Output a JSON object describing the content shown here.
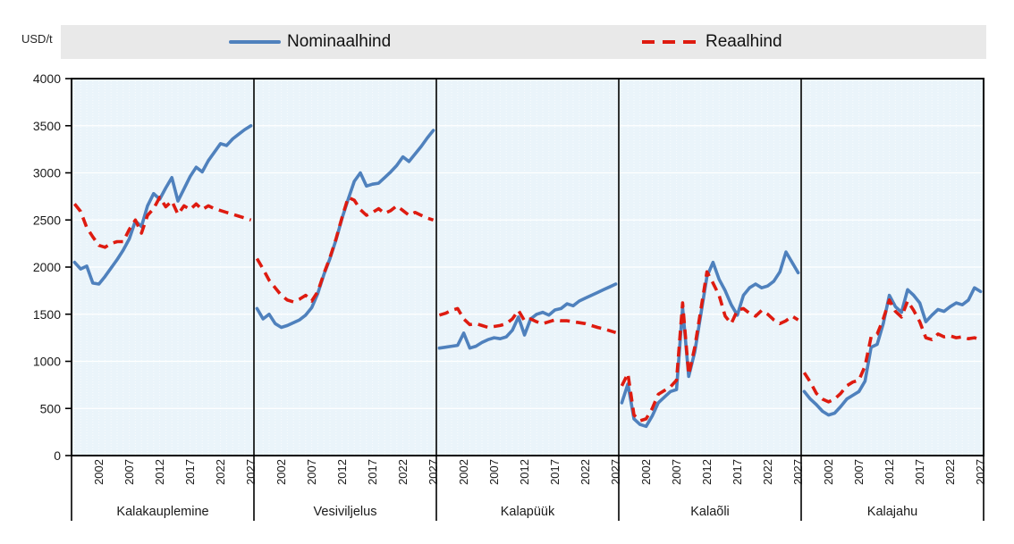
{
  "unit_label": "USD/t",
  "legend": {
    "items": [
      {
        "label": "Nominaalhind",
        "style": "solid",
        "color": "#4F81BD"
      },
      {
        "label": "Reaalhind",
        "style": "dashed",
        "color": "#DE1B10"
      }
    ]
  },
  "colors": {
    "nominal": "#4F81BD",
    "real": "#DE1B10",
    "plot_bg": "#EAF4FA",
    "legend_bg": "#E9E9E9",
    "axis": "#000000",
    "grid": "#FFFFFF",
    "text": "#1A1A1A"
  },
  "chart_data": {
    "type": "line",
    "title": "",
    "ylabel": "USD/t",
    "ylim": [
      0,
      4000
    ],
    "ytick_interval": 500,
    "grid": true,
    "legend_position": "top",
    "years": [
      1998,
      1999,
      2000,
      2001,
      2002,
      2003,
      2004,
      2005,
      2006,
      2007,
      2008,
      2009,
      2010,
      2011,
      2012,
      2013,
      2014,
      2015,
      2016,
      2017,
      2018,
      2019,
      2020,
      2021,
      2022,
      2023,
      2024,
      2025,
      2026,
      2027
    ],
    "year_tick_labels": [
      2002,
      2007,
      2012,
      2017,
      2022,
      2027
    ],
    "panels": [
      {
        "label": "Kalakauplemine",
        "slug": "kalakauplemine",
        "series": [
          {
            "name": "Nominaalhind",
            "values": [
              2050,
              1980,
              2010,
              1830,
              1820,
              1900,
              1990,
              2080,
              2180,
              2300,
              2490,
              2430,
              2650,
              2780,
              2720,
              2840,
              2950,
              2700,
              2830,
              2960,
              3060,
              3010,
              3130,
              3220,
              3310,
              3290,
              3360,
              3410,
              3460,
              3500
            ]
          },
          {
            "name": "Reaalhind",
            "values": [
              2670,
              2590,
              2420,
              2320,
              2230,
              2210,
              2250,
              2270,
              2270,
              2400,
              2500,
              2360,
              2550,
              2620,
              2740,
              2640,
              2700,
              2560,
              2650,
              2610,
              2670,
              2610,
              2650,
              2620,
              2600,
              2580,
              2560,
              2540,
              2520,
              2500
            ]
          }
        ]
      },
      {
        "label": "Vesiviljelus",
        "slug": "vesiviljelus",
        "series": [
          {
            "name": "Nominaalhind",
            "values": [
              1560,
              1450,
              1500,
              1400,
              1360,
              1380,
              1410,
              1440,
              1490,
              1570,
              1720,
              1920,
              2090,
              2290,
              2520,
              2720,
              2910,
              3000,
              2860,
              2880,
              2890,
              2950,
              3010,
              3080,
              3170,
              3120,
              3200,
              3280,
              3370,
              3450
            ]
          },
          {
            "name": "Reaalhind",
            "values": [
              2090,
              1980,
              1860,
              1780,
              1700,
              1650,
              1630,
              1660,
              1700,
              1640,
              1740,
              1930,
              2100,
              2300,
              2530,
              2740,
              2710,
              2610,
              2550,
              2580,
              2620,
              2570,
              2600,
              2650,
              2600,
              2550,
              2580,
              2550,
              2520,
              2500
            ]
          }
        ]
      },
      {
        "label": "Kalapüük",
        "slug": "kalapuuk",
        "series": [
          {
            "name": "Nominaalhind",
            "values": [
              1140,
              1150,
              1160,
              1170,
              1300,
              1140,
              1160,
              1200,
              1230,
              1250,
              1240,
              1260,
              1330,
              1470,
              1280,
              1450,
              1500,
              1520,
              1490,
              1545,
              1560,
              1610,
              1590,
              1640,
              1670,
              1700,
              1730,
              1760,
              1790,
              1820
            ]
          },
          {
            "name": "Reaalhind",
            "values": [
              1490,
              1510,
              1540,
              1560,
              1450,
              1390,
              1400,
              1380,
              1360,
              1370,
              1380,
              1400,
              1450,
              1540,
              1430,
              1450,
              1420,
              1400,
              1420,
              1440,
              1430,
              1430,
              1420,
              1410,
              1400,
              1380,
              1360,
              1345,
              1325,
              1305
            ]
          }
        ]
      },
      {
        "label": "Kalaõli",
        "slug": "kalaoli",
        "series": [
          {
            "name": "Nominaalhind",
            "values": [
              560,
              760,
              390,
              330,
              310,
              420,
              560,
              620,
              680,
              700,
              1570,
              840,
              1100,
              1500,
              1900,
              2050,
              1870,
              1750,
              1600,
              1490,
              1700,
              1780,
              1820,
              1780,
              1800,
              1850,
              1950,
              2160,
              2050,
              1940
            ]
          },
          {
            "name": "Reaalhind",
            "values": [
              740,
              870,
              430,
              370,
              390,
              500,
              650,
              690,
              730,
              800,
              1620,
              860,
              1150,
              1550,
              1950,
              1830,
              1700,
              1480,
              1400,
              1540,
              1560,
              1510,
              1480,
              1540,
              1500,
              1440,
              1400,
              1430,
              1480,
              1440
            ]
          }
        ]
      },
      {
        "label": "Kalajahu",
        "slug": "kalajahu",
        "series": [
          {
            "name": "Nominaalhind",
            "values": [
              680,
              600,
              540,
              470,
              430,
              450,
              520,
              600,
              640,
              680,
              790,
              1150,
              1180,
              1400,
              1700,
              1580,
              1520,
              1760,
              1700,
              1620,
              1420,
              1490,
              1550,
              1530,
              1580,
              1620,
              1600,
              1650,
              1780,
              1740
            ]
          },
          {
            "name": "Reaalhind",
            "values": [
              880,
              780,
              660,
              600,
              570,
              600,
              660,
              740,
              780,
              800,
              950,
              1260,
              1290,
              1450,
              1650,
              1530,
              1470,
              1640,
              1540,
              1420,
              1250,
              1230,
              1290,
              1260,
              1270,
              1250,
              1260,
              1240,
              1250,
              1230
            ]
          }
        ]
      }
    ]
  }
}
